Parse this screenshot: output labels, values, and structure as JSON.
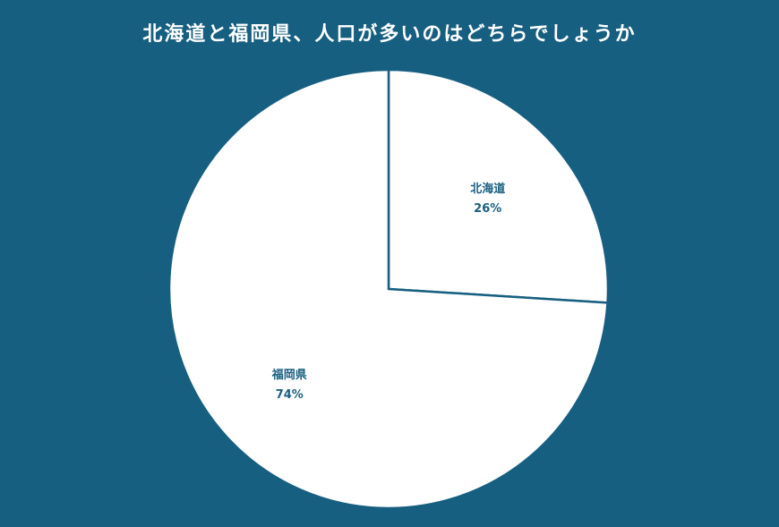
{
  "chart_data": {
    "type": "pie",
    "title": "北海道と福岡県、人口が多いのはどちらでしょうか",
    "slices": [
      {
        "label": "北海道",
        "value": 26,
        "value_label": "26%"
      },
      {
        "label": "福岡県",
        "value": 74,
        "value_label": "74%"
      }
    ],
    "start_angle": "top",
    "direction": "clockwise",
    "colors": {
      "background": "#175f80",
      "slice_fill": "#ffffff",
      "slice_stroke": "#175f80",
      "label": "#1a5f80"
    }
  }
}
